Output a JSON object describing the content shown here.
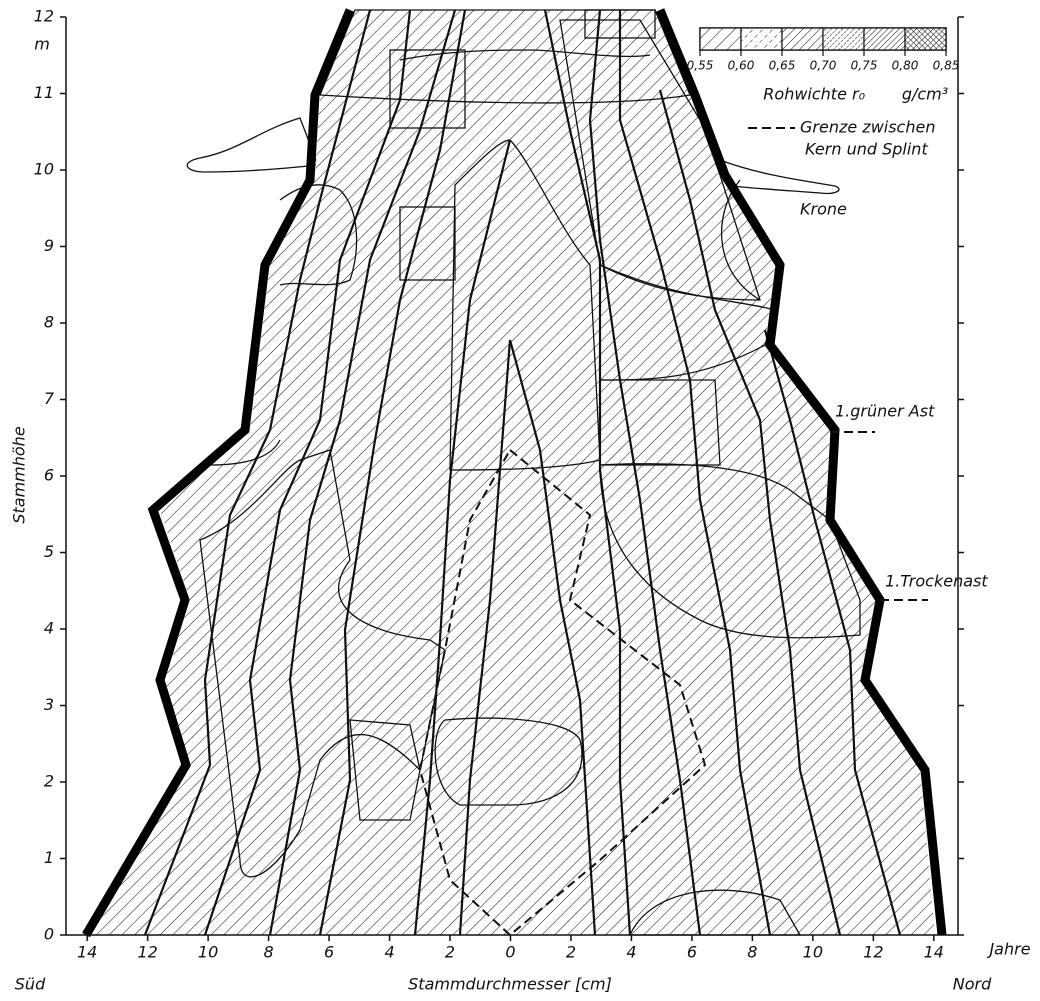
{
  "chart_data": {
    "type": "contour",
    "xlabel": "Stammdurchmesser [cm]",
    "ylabel": "Stammhöhe",
    "yunit": "m",
    "left_label": "Süd",
    "right_label": "Nord",
    "x2label": "Jahre",
    "xlim": [
      -14.7,
      14.8
    ],
    "ylim": [
      0,
      12
    ],
    "xticks": [
      {
        "value": -14,
        "label": "14"
      },
      {
        "value": -12,
        "label": "12"
      },
      {
        "value": -10,
        "label": "10"
      },
      {
        "value": -8,
        "label": "8"
      },
      {
        "value": -6,
        "label": "6"
      },
      {
        "value": -4,
        "label": "4"
      },
      {
        "value": -2,
        "label": "2"
      },
      0,
      2,
      4,
      6,
      8,
      10,
      12,
      14
    ],
    "yticks": [
      0,
      1,
      2,
      3,
      4,
      5,
      6,
      7,
      8,
      9,
      10,
      11,
      12
    ],
    "legend": {
      "title": "Rohwichte r₀",
      "unit": "g/cm³",
      "bins": [
        {
          "value": 0.55,
          "label": "0,55"
        },
        {
          "value": 0.6,
          "label": "0,60"
        },
        {
          "value": 0.65,
          "label": "0,65"
        },
        {
          "value": 0.7,
          "label": "0,70"
        },
        {
          "value": 0.75,
          "label": "0,75"
        },
        {
          "value": 0.8,
          "label": "0,80"
        },
        {
          "value": 0.85,
          "label": "0,85"
        }
      ]
    },
    "boundary_note": [
      "Grenze zwischen",
      "Kern und Splint"
    ],
    "annotations": [
      "Krone",
      "1.grüner Ast",
      "1.Trockenast"
    ]
  }
}
